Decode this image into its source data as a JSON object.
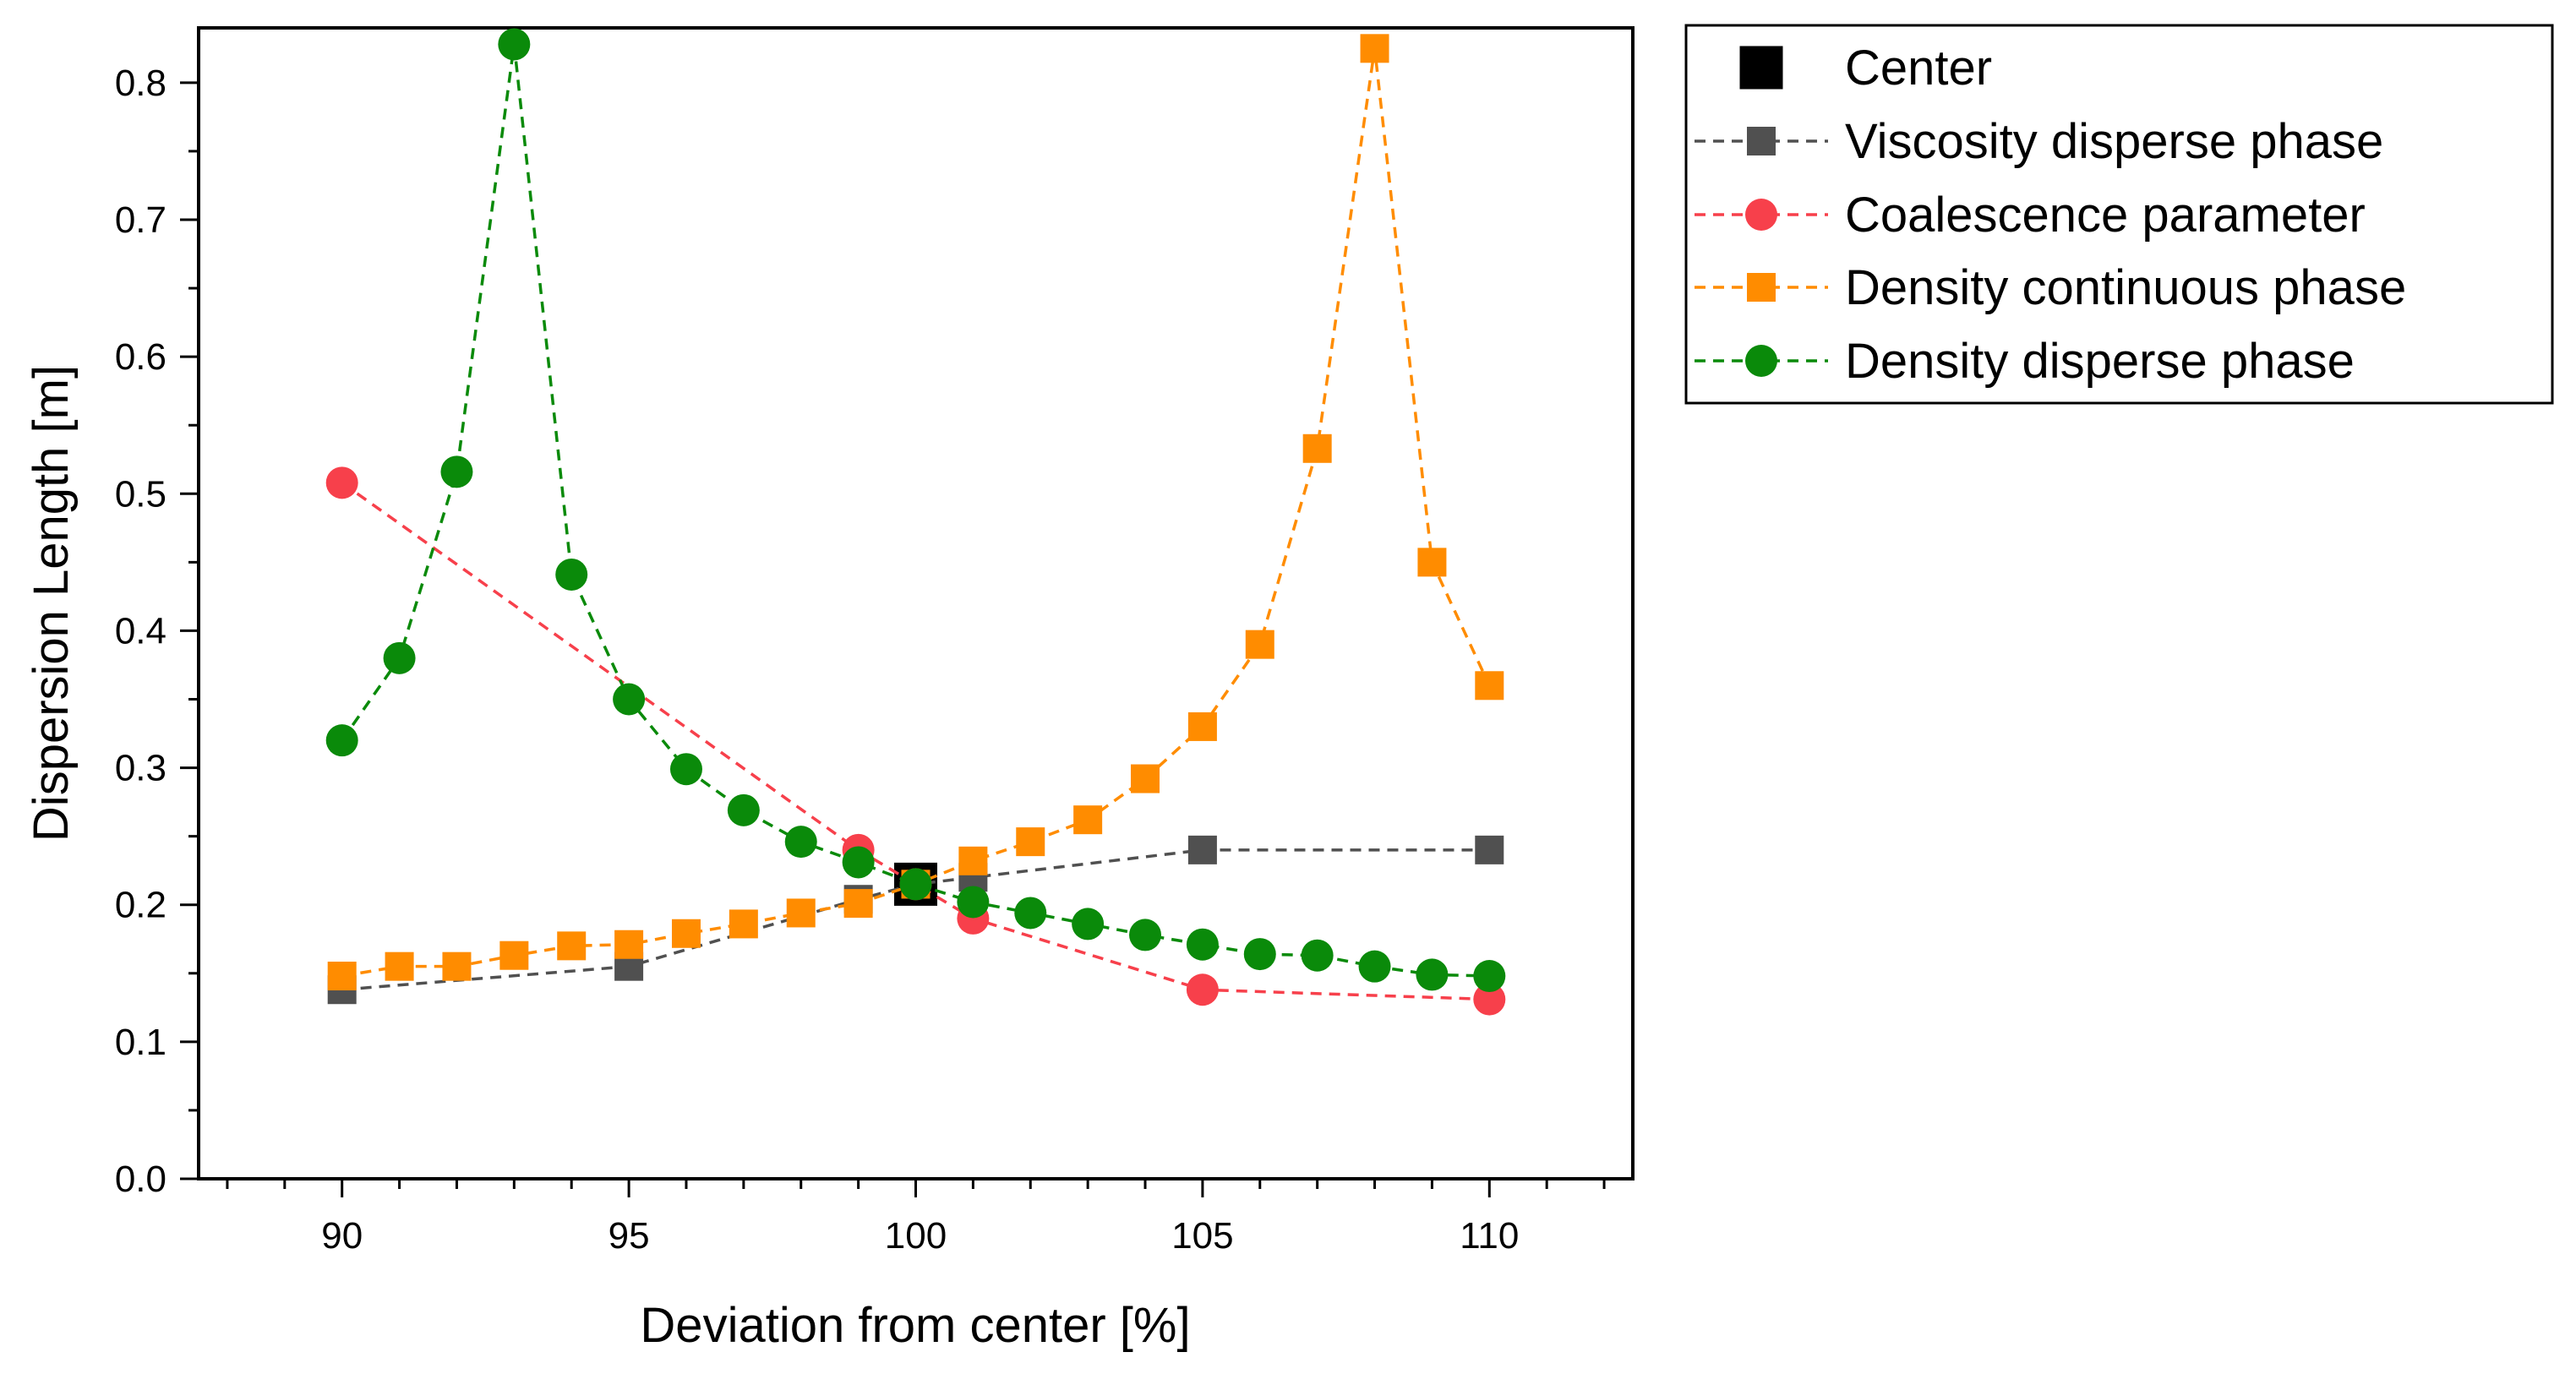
{
  "chart_data": {
    "type": "scatter",
    "title": "",
    "xlabel": "Deviation from center [%]",
    "ylabel": "Dispersion Length [m]",
    "xlim": [
      87.5,
      112.5
    ],
    "ylim": [
      0.0,
      0.84
    ],
    "xticks": [
      90,
      95,
      100,
      105,
      110
    ],
    "yticks": [
      0.0,
      0.1,
      0.2,
      0.3,
      0.4,
      0.5,
      0.6,
      0.7,
      0.8
    ],
    "xtick_labels": [
      "90",
      "95",
      "100",
      "105",
      "110"
    ],
    "ytick_labels": [
      "0.0",
      "0.1",
      "0.2",
      "0.3",
      "0.4",
      "0.5",
      "0.6",
      "0.7",
      "0.8"
    ],
    "grid": false,
    "legend_position": "outside-top-right",
    "series": [
      {
        "name": "Center",
        "marker": "square-large",
        "color": "#000000",
        "line": false,
        "points": [
          [
            100,
            0.215
          ]
        ]
      },
      {
        "name": "Viscosity disperse phase",
        "marker": "square",
        "color": "#505050",
        "line": true,
        "points": [
          [
            90,
            0.138
          ],
          [
            95,
            0.155
          ],
          [
            99,
            0.204
          ],
          [
            100,
            0.215
          ],
          [
            101,
            0.22
          ],
          [
            105,
            0.24
          ],
          [
            110,
            0.24
          ]
        ]
      },
      {
        "name": "Coalescence parameter",
        "marker": "circle",
        "color": "#f7404b",
        "line": true,
        "points": [
          [
            90,
            0.508
          ],
          [
            99,
            0.24
          ],
          [
            100,
            0.215
          ],
          [
            101,
            0.19
          ],
          [
            105,
            0.138
          ],
          [
            110,
            0.131
          ]
        ]
      },
      {
        "name": "Density continuous phase",
        "marker": "square",
        "color": "#ff8c00",
        "line": true,
        "points": [
          [
            90,
            0.148
          ],
          [
            91,
            0.155
          ],
          [
            92,
            0.155
          ],
          [
            93,
            0.163
          ],
          [
            94,
            0.17
          ],
          [
            95,
            0.171
          ],
          [
            96,
            0.179
          ],
          [
            97,
            0.186
          ],
          [
            98,
            0.194
          ],
          [
            99,
            0.201
          ],
          [
            100,
            0.215
          ],
          [
            101,
            0.232
          ],
          [
            102,
            0.246
          ],
          [
            103,
            0.262
          ],
          [
            104,
            0.292
          ],
          [
            105,
            0.33
          ],
          [
            106,
            0.39
          ],
          [
            107,
            0.533
          ],
          [
            108,
            0.825
          ],
          [
            109,
            0.45
          ],
          [
            110,
            0.36
          ]
        ]
      },
      {
        "name": "Density disperse phase",
        "marker": "circle",
        "color": "#0a8a0a",
        "line": true,
        "points": [
          [
            90,
            0.32
          ],
          [
            91,
            0.38
          ],
          [
            92,
            0.516
          ],
          [
            93,
            0.828
          ],
          [
            94,
            0.441
          ],
          [
            95,
            0.35
          ],
          [
            96,
            0.299
          ],
          [
            97,
            0.269
          ],
          [
            98,
            0.246
          ],
          [
            99,
            0.231
          ],
          [
            100,
            0.215
          ],
          [
            101,
            0.202
          ],
          [
            102,
            0.194
          ],
          [
            103,
            0.186
          ],
          [
            104,
            0.178
          ],
          [
            105,
            0.171
          ],
          [
            106,
            0.164
          ],
          [
            107,
            0.163
          ],
          [
            108,
            0.155
          ],
          [
            109,
            0.149
          ],
          [
            110,
            0.148
          ]
        ]
      }
    ]
  }
}
